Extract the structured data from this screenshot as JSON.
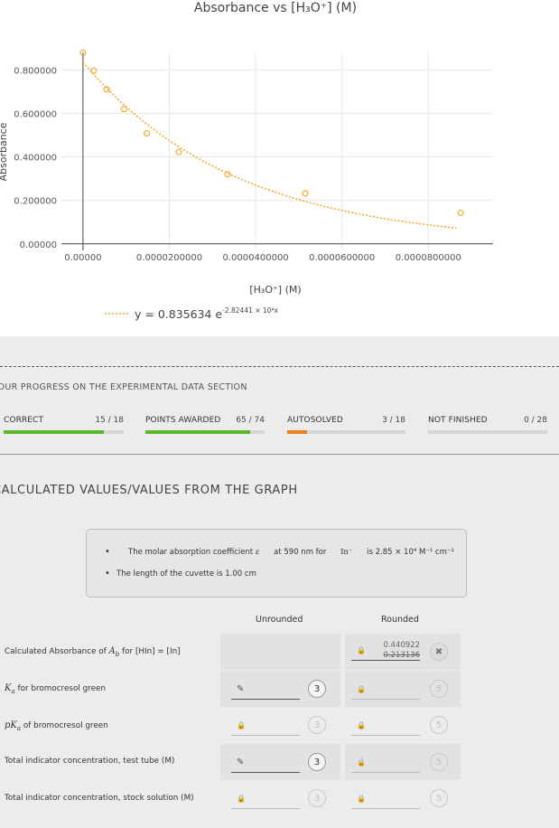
{
  "chart_data": {
    "type": "scatter",
    "title": "Absorbance vs [H₃O⁺] (M)",
    "xlabel": "[H₃O⁺] (M)",
    "ylabel": "Absorbance",
    "xlim": [
      -5e-06,
      9.5e-05
    ],
    "ylim": [
      -0.03,
      0.88
    ],
    "x_ticks": [
      0,
      2e-05,
      4e-05,
      6e-05,
      8e-05
    ],
    "x_tick_labels": [
      "0.00000",
      "0.0000200000",
      "0.0000400000",
      "0.0000600000",
      "0.0000800000"
    ],
    "y_ticks": [
      0,
      0.2,
      0.4,
      0.6,
      0.8
    ],
    "y_tick_labels": [
      "0.00000",
      "0.200000",
      "0.400000",
      "0.600000",
      "0.800000"
    ],
    "points_x": [
      0,
      2.5e-06,
      5.5e-06,
      9.5e-06,
      1.48e-05,
      2.22e-05,
      3.35e-05,
      5.15e-05,
      8.75e-05
    ],
    "points_y": [
      0.878,
      0.796,
      0.71,
      0.62,
      0.508,
      0.422,
      0.32,
      0.232,
      0.143
    ],
    "fit": {
      "A": 0.835634,
      "k": 28244.1,
      "x_end": 8.65e-05
    },
    "legend_text": "y = 0.835634 e",
    "legend_exp": "-2.82441 × 10⁴x",
    "grid": true,
    "colors": {
      "series": "#f5a623",
      "axis": "#444444",
      "grid": "#e8e8e8"
    }
  },
  "progress": {
    "title": "YOUR PROGRESS ON THE EXPERIMENTAL DATA SECTION",
    "items": [
      {
        "label": "CORRECT",
        "value": "15 / 18",
        "fraction": 0.8333,
        "color": "#5cb82a"
      },
      {
        "label": "POINTS AWARDED",
        "value": "65 / 74",
        "fraction": 0.8784,
        "color": "#5cb82a"
      },
      {
        "label": "AUTOSOLVED",
        "value": "3 / 18",
        "fraction": 0.1667,
        "color": "#f0801e"
      },
      {
        "label": "NOT FINISHED",
        "value": "0 / 28",
        "fraction": 0,
        "color": "#5cb82a"
      }
    ]
  },
  "section_title": "CALCULATED VALUES/VALUES FROM THE GRAPH",
  "info": {
    "line1_pre": "The molar absorption coefficient ",
    "line1_eps": "ε",
    "line1_mid": " at 590 nm for ",
    "line1_ion": "In⁻",
    "line1_post": " is 2.85 × 10⁴ M⁻¹ cm⁻¹",
    "line2": "The length of the cuvette is 1.00 cm"
  },
  "table": {
    "head_unrounded": "Unrounded",
    "head_rounded": "Rounded",
    "rows": [
      {
        "label_pre": "Calculated Absorbance of ",
        "label_sym": "A",
        "label_sub": "b",
        "label_post": " for [HIn] = [In]"
      },
      {
        "label_sym": "K",
        "label_sub": "a",
        "label_post": " for bromocresol green"
      },
      {
        "label_sym": "pK",
        "label_sub": "a",
        "label_post": " of bromocresol green"
      },
      {
        "label_post": "Total indicator concentration, test tube (M)"
      },
      {
        "label_post": "Total indicator concentration, stock solution (M)"
      }
    ],
    "row1_answer": "0.440922",
    "row1_wrong": "0.213136",
    "attempts_unrounded": [
      "3",
      "3",
      "3",
      "3"
    ],
    "attempts_rounded": [
      "5",
      "5",
      "5",
      "5"
    ],
    "icons": {
      "edit": "pencil-icon",
      "locked": "lock-icon",
      "wrong": "close-icon"
    }
  }
}
